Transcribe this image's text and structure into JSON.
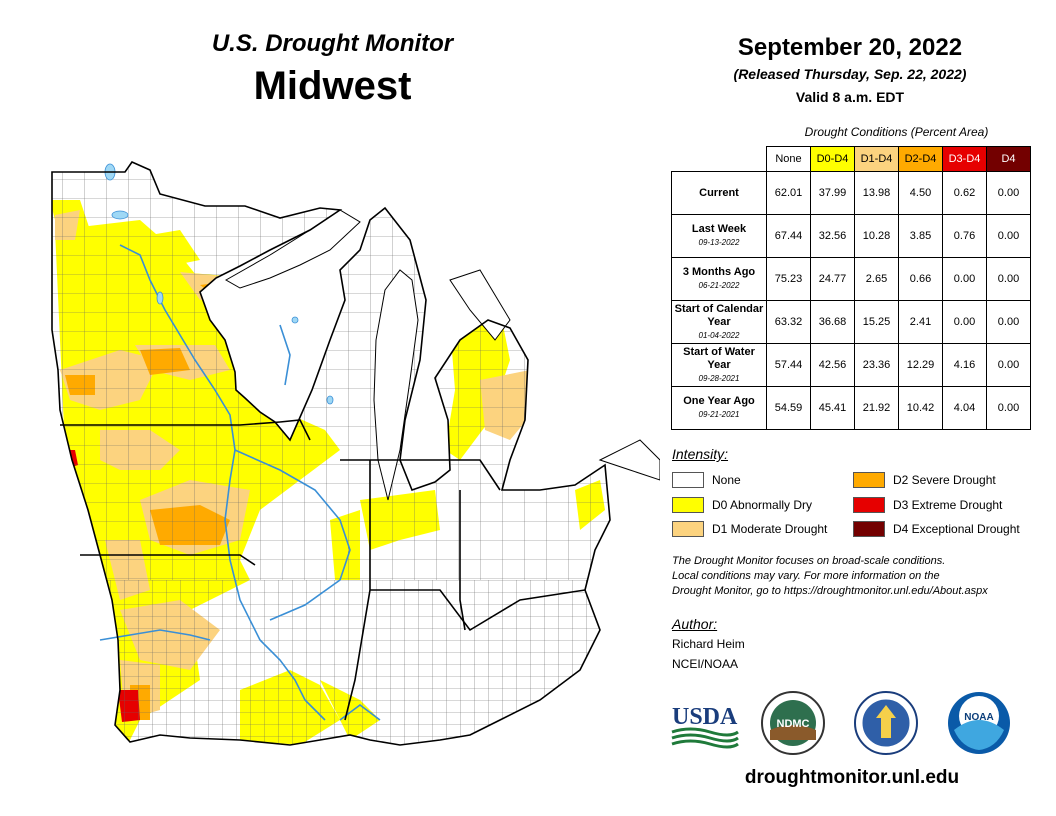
{
  "header": {
    "title": "U.S. Drought Monitor",
    "region": "Midwest",
    "date": "September 20, 2022",
    "released": "(Released Thursday, Sep. 22, 2022)",
    "valid": "Valid 8 a.m. EDT"
  },
  "table": {
    "caption": "Drought Conditions (Percent Area)",
    "columns": [
      {
        "label": "None",
        "color": "#ffffff",
        "text_color": "#000000"
      },
      {
        "label": "D0-D4",
        "color": "#ffff00",
        "text_color": "#000000"
      },
      {
        "label": "D1-D4",
        "color": "#fcd37f",
        "text_color": "#000000"
      },
      {
        "label": "D2-D4",
        "color": "#ffaa00",
        "text_color": "#000000"
      },
      {
        "label": "D3-D4",
        "color": "#e60000",
        "text_color": "#ffffff"
      },
      {
        "label": "D4",
        "color": "#730000",
        "text_color": "#ffffff"
      }
    ],
    "rows": [
      {
        "label": "Current",
        "sublabel": "",
        "values": [
          "62.01",
          "37.99",
          "13.98",
          "4.50",
          "0.62",
          "0.00"
        ]
      },
      {
        "label": "Last Week",
        "sublabel": "09-13-2022",
        "values": [
          "67.44",
          "32.56",
          "10.28",
          "3.85",
          "0.76",
          "0.00"
        ]
      },
      {
        "label": "3 Months Ago",
        "sublabel": "06-21-2022",
        "values": [
          "75.23",
          "24.77",
          "2.65",
          "0.66",
          "0.00",
          "0.00"
        ]
      },
      {
        "label": "Start of Calendar Year",
        "sublabel": "01-04-2022",
        "values": [
          "63.32",
          "36.68",
          "15.25",
          "2.41",
          "0.00",
          "0.00"
        ]
      },
      {
        "label": "Start of Water Year",
        "sublabel": "09-28-2021",
        "values": [
          "57.44",
          "42.56",
          "23.36",
          "12.29",
          "4.16",
          "0.00"
        ]
      },
      {
        "label": "One Year Ago",
        "sublabel": "09-21-2021",
        "values": [
          "54.59",
          "45.41",
          "21.92",
          "10.42",
          "4.04",
          "0.00"
        ]
      }
    ]
  },
  "legend": {
    "title": "Intensity:",
    "items": [
      {
        "label": "None",
        "color": "#ffffff"
      },
      {
        "label": "D0 Abnormally Dry",
        "color": "#ffff00"
      },
      {
        "label": "D1 Moderate Drought",
        "color": "#fcd37f"
      },
      {
        "label": "D2 Severe Drought",
        "color": "#ffaa00"
      },
      {
        "label": "D3 Extreme Drought",
        "color": "#e60000"
      },
      {
        "label": "D4 Exceptional Drought",
        "color": "#730000"
      }
    ]
  },
  "note": {
    "line1": "The Drought Monitor focuses on broad-scale conditions.",
    "line2": "Local conditions may vary. For more information on the",
    "line3": "Drought Monitor, go to https://droughtmonitor.unl.edu/About.aspx"
  },
  "author": {
    "title": "Author:",
    "name": "Richard Heim",
    "org": "NCEI/NOAA"
  },
  "logos": {
    "usda": "USDA",
    "ndmc": "NDMC",
    "noaa": "NOAA"
  },
  "website": "droughtmonitor.unl.edu",
  "colors": {
    "water": "#9fd8f5",
    "river": "#3a8fd6",
    "county_line": "#666666",
    "state_line": "#000000"
  }
}
